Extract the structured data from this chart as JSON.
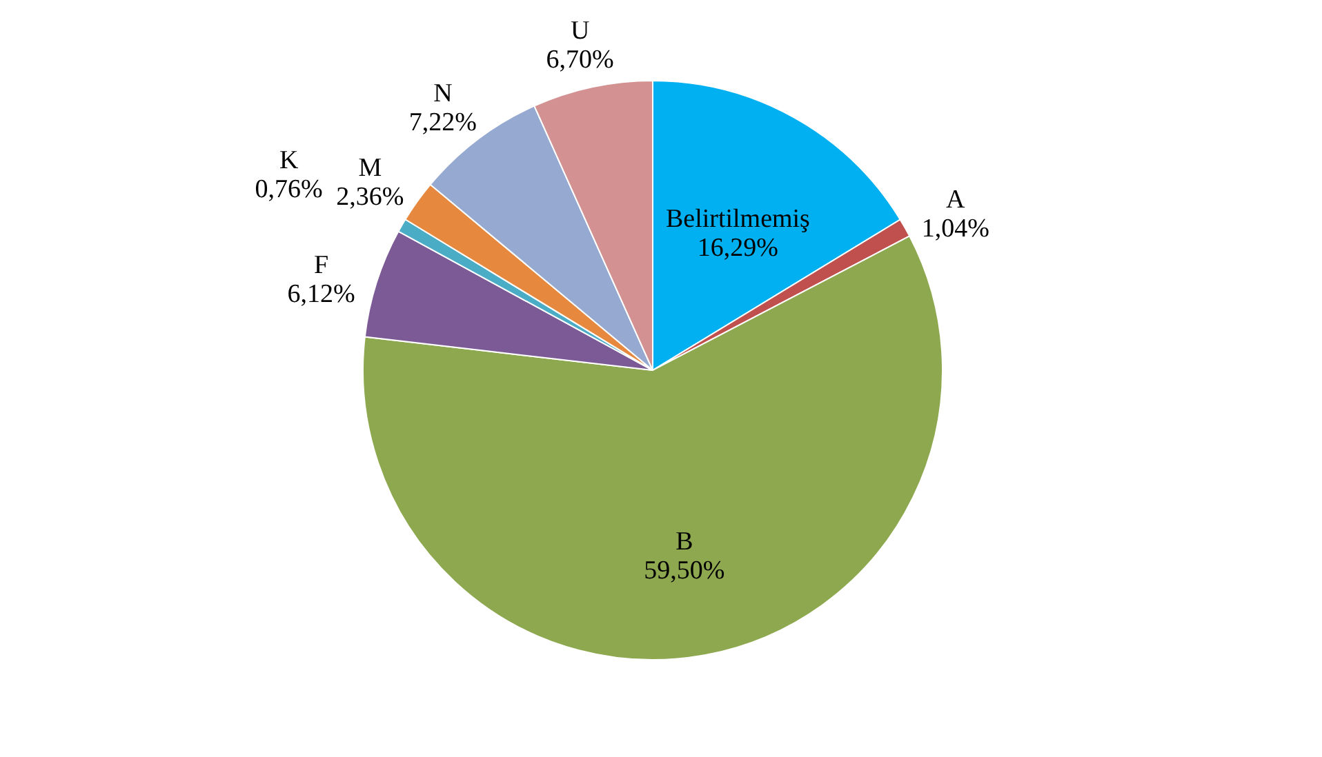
{
  "chart_data": {
    "type": "pie",
    "categories": [
      "Belirtilmemiş",
      "A",
      "B",
      "F",
      "K",
      "M",
      "N",
      "U"
    ],
    "values": [
      16.29,
      1.04,
      59.5,
      6.12,
      0.76,
      2.36,
      7.22,
      6.7
    ],
    "value_labels": [
      "16,29%",
      "1,04%",
      "59,50%",
      "6,12%",
      "0,76%",
      "2,36%",
      "7,22%",
      "6,70%"
    ],
    "colors": [
      "#00b0f0",
      "#c0504d",
      "#8da84e",
      "#7b5a96",
      "#4bacc6",
      "#e6893f",
      "#95a9d1",
      "#d39291"
    ],
    "legend": false
  }
}
